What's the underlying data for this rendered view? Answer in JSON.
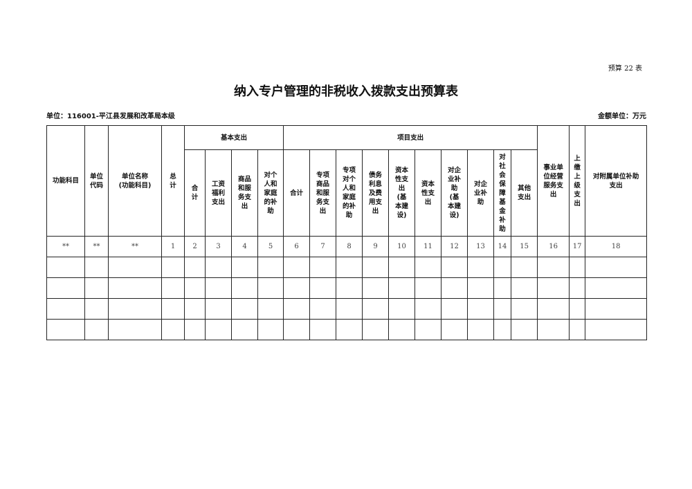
{
  "form_no": "预算 22 表",
  "title": "纳入专户管理的非税收入拨款支出预算表",
  "unit": "单位：116001-平江县发展和改革局本级",
  "money_unit": "金额单位：万元",
  "headers": {
    "c1": "功能科目",
    "c2": "单位\n代码",
    "c3": "单位名称\n(功能科目)",
    "c4": "总\n计",
    "basic": "基本支出",
    "project": "项目支出",
    "b": [
      "合\n计",
      "工资\n福利\n支出",
      "商品\n和服\n务支\n出",
      "对个\n人和\n家庭\n的补\n助"
    ],
    "p": [
      "合计",
      "专项\n商品\n和服\n务支\n出",
      "专项\n对个\n人和\n家庭\n的补\n助",
      "债务\n利息\n及费\n用支\n出",
      "资本\n性支\n出\n(基\n本建\n设)",
      "资本\n性支\n出",
      "对企\n业补\n助\n(基\n本建\n设)",
      "对企\n业补\n助",
      "对\n社\n会\n保\n障\n基\n金\n补\n助",
      "其他\n支出"
    ],
    "c16": "事业单\n位经营\n服务支\n出",
    "c17": "上\n缴\n上\n级\n支\n出",
    "c18": "对附属单位补助\n支出"
  },
  "index_row": [
    "**",
    "**",
    "**",
    "1",
    "2",
    "3",
    "4",
    "5",
    "6",
    "7",
    "8",
    "9",
    "10",
    "11",
    "12",
    "13",
    "14",
    "15",
    "16",
    "17",
    "18"
  ],
  "empty_rows": 4
}
